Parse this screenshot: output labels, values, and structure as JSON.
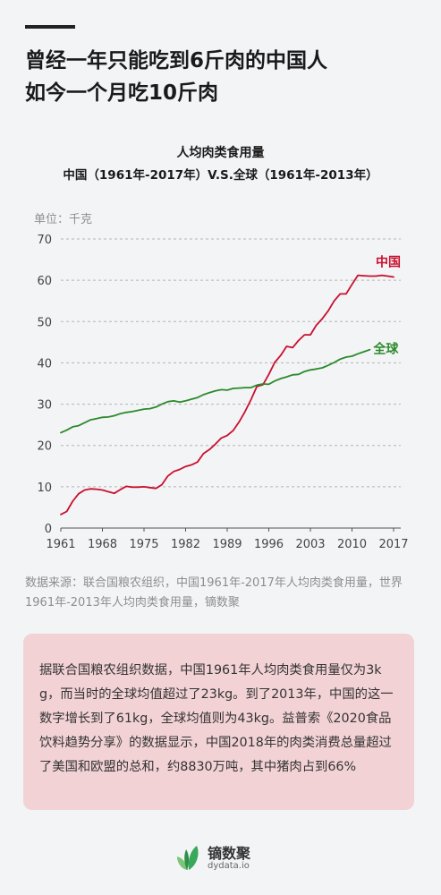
{
  "headline": {
    "line1": "曾经一年只能吃到6斤肉的中国人",
    "line2": "如今一个月吃10斤肉"
  },
  "chart_title": {
    "line1": "人均肉类食用量",
    "line2": "中国（1961年-2017年）V.S.全球（1961年-2013年）"
  },
  "colors": {
    "china": "#c8102e",
    "world": "#2a8a2a",
    "note_bg": "#f2d2d5",
    "brand_green": "#3aa85a"
  },
  "chart_data": {
    "type": "line",
    "title": "人均肉类食用量",
    "subtitle": "中国（1961年-2017年）V.S.全球（1961年-2013年）",
    "unit_label": "单位：千克",
    "xlim": [
      1961,
      2017
    ],
    "ylim": [
      0,
      70
    ],
    "x_ticks": [
      "1961",
      "1968",
      "1975",
      "1982",
      "1989",
      "1996",
      "2003",
      "2010",
      "2017"
    ],
    "y_ticks": [
      "0",
      "10",
      "20",
      "30",
      "40",
      "50",
      "60",
      "70"
    ],
    "grid": true,
    "series": [
      {
        "name": "中国",
        "color": "#c8102e",
        "x": [
          1961,
          1962,
          1963,
          1964,
          1965,
          1966,
          1967,
          1968,
          1969,
          1970,
          1971,
          1972,
          1973,
          1974,
          1975,
          1976,
          1977,
          1978,
          1979,
          1980,
          1981,
          1982,
          1983,
          1984,
          1985,
          1986,
          1987,
          1988,
          1989,
          1990,
          1991,
          1992,
          1993,
          1994,
          1995,
          1996,
          1997,
          1998,
          1999,
          2000,
          2001,
          2002,
          2003,
          2004,
          2005,
          2006,
          2007,
          2008,
          2009,
          2010,
          2011,
          2012,
          2013,
          2014,
          2015,
          2016,
          2017
        ],
        "y": [
          3.3,
          4.0,
          6.5,
          8.3,
          9.2,
          9.5,
          9.4,
          9.2,
          8.8,
          8.4,
          9.3,
          10.1,
          9.9,
          9.9,
          10.0,
          9.8,
          9.6,
          10.5,
          12.6,
          13.7,
          14.2,
          14.9,
          15.3,
          16.0,
          18.0,
          19.0,
          20.3,
          21.8,
          22.4,
          23.6,
          25.7,
          28.2,
          31.1,
          34.3,
          34.7,
          37.2,
          40.1,
          41.8,
          44.0,
          43.7,
          45.4,
          46.8,
          46.8,
          49.1,
          50.7,
          52.6,
          55.0,
          56.7,
          56.7,
          59.0,
          61.2,
          61.1,
          61.0,
          61.0,
          61.2,
          61.0,
          60.8
        ]
      },
      {
        "name": "全球",
        "color": "#2a8a2a",
        "x": [
          1961,
          1962,
          1963,
          1964,
          1965,
          1966,
          1967,
          1968,
          1969,
          1970,
          1971,
          1972,
          1973,
          1974,
          1975,
          1976,
          1977,
          1978,
          1979,
          1980,
          1981,
          1982,
          1983,
          1984,
          1985,
          1986,
          1987,
          1988,
          1989,
          1990,
          1991,
          1992,
          1993,
          1994,
          1995,
          1996,
          1997,
          1998,
          1999,
          2000,
          2001,
          2002,
          2003,
          2004,
          2005,
          2006,
          2007,
          2008,
          2009,
          2010,
          2011,
          2012,
          2013
        ],
        "y": [
          23.1,
          23.7,
          24.5,
          24.8,
          25.5,
          26.2,
          26.5,
          26.8,
          26.9,
          27.2,
          27.7,
          28.0,
          28.2,
          28.5,
          28.8,
          28.9,
          29.3,
          30.0,
          30.6,
          30.8,
          30.5,
          30.8,
          31.2,
          31.6,
          32.3,
          32.8,
          33.2,
          33.5,
          33.4,
          33.8,
          33.9,
          34.0,
          34.0,
          34.6,
          34.9,
          34.8,
          35.6,
          36.2,
          36.6,
          37.1,
          37.2,
          37.9,
          38.3,
          38.5,
          38.8,
          39.4,
          40.1,
          40.9,
          41.4,
          41.6,
          42.2,
          42.7,
          43.2
        ]
      }
    ]
  },
  "source": "数据来源：联合国粮农组织，中国1961年-2017年人均肉类食用量，世界1961年-2013年人均肉类食用量，镝数聚",
  "note": "据联合国粮农组织数据，中国1961年人均肉类食用量仅为3kg，而当时的全球均值超过了23kg。到了2013年，中国的这一数字增长到了61kg，全球均值则为43kg。益普索《2020食品饮料趋势分享》的数据显示，中国2018年的肉类消费总量超过了美国和欧盟的总和，约8830万吨，其中猪肉占到66%",
  "brand": {
    "name_cn": "镝数聚",
    "name_en": "dydata.io",
    "icon": "leaf-logo-icon"
  }
}
